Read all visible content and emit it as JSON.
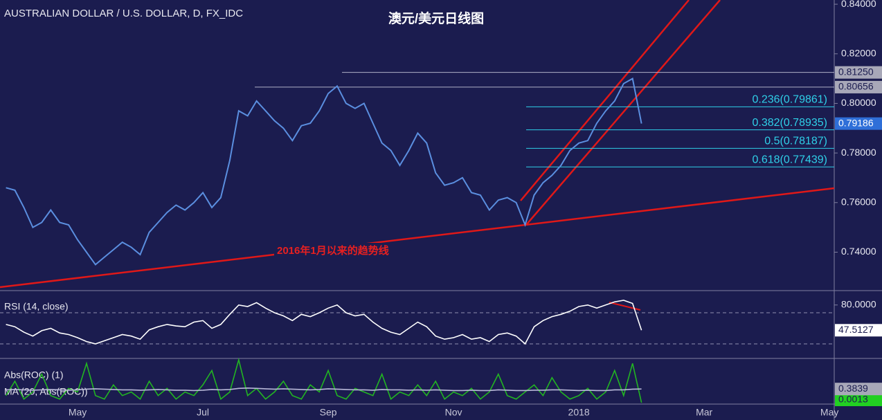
{
  "chart_data": [
    {
      "type": "line",
      "title": "AUSTRALIAN DOLLAR / U.S. DOLLAR, D, FX_IDC",
      "subtitle": "澳元/美元日线图",
      "annotation": "2016年1月以来的趋势线",
      "categories": [
        null,
        null,
        null,
        null,
        null,
        null,
        null,
        null,
        "May",
        null,
        null,
        null,
        null,
        null,
        null,
        null,
        null,
        null,
        null,
        null,
        null,
        null,
        "Jul",
        null,
        null,
        null,
        null,
        null,
        null,
        null,
        null,
        null,
        null,
        null,
        null,
        null,
        "Sep",
        null,
        null,
        null,
        null,
        null,
        null,
        null,
        null,
        null,
        null,
        null,
        null,
        null,
        "Nov",
        null,
        null,
        null,
        null,
        null,
        null,
        null,
        null,
        null,
        null,
        null,
        null,
        null,
        "2018",
        null,
        null,
        null,
        null,
        null,
        null,
        null,
        null,
        null,
        null,
        null,
        null,
        null,
        "Mar",
        null,
        null,
        null,
        null,
        null,
        null,
        null,
        null,
        null,
        null,
        null,
        null,
        null,
        "May"
      ],
      "series": [
        {
          "color": "#5b8fe0",
          "values": [
            0.766,
            0.765,
            0.758,
            0.75,
            0.752,
            0.757,
            0.752,
            0.751,
            0.745,
            0.74,
            0.735,
            0.738,
            0.741,
            0.744,
            0.742,
            0.739,
            0.748,
            0.752,
            0.756,
            0.759,
            0.757,
            0.76,
            0.764,
            0.758,
            0.762,
            0.777,
            0.797,
            0.795,
            0.801,
            0.797,
            0.793,
            0.79,
            0.785,
            0.791,
            0.792,
            0.797,
            0.804,
            0.807,
            0.8,
            0.798,
            0.8,
            0.792,
            0.784,
            0.781,
            0.775,
            0.781,
            0.788,
            0.784,
            0.772,
            0.767,
            0.768,
            0.77,
            0.764,
            0.763,
            0.757,
            0.761,
            0.762,
            0.76,
            0.751,
            0.763,
            0.768,
            0.771,
            0.775,
            0.781,
            0.784,
            0.785,
            0.792,
            0.797,
            0.801,
            0.808,
            0.81,
            0.79186,
            null,
            null,
            null,
            null,
            null,
            null,
            null,
            null,
            null,
            null,
            null,
            null,
            null,
            null,
            null,
            null,
            null,
            null,
            null,
            null,
            null
          ]
        }
      ],
      "ylim": [
        0.7245,
        0.8417
      ],
      "yticks": [
        {
          "value": 0.84,
          "label": "0.84000"
        },
        {
          "value": 0.82,
          "label": "0.82000"
        },
        {
          "value": 0.8,
          "label": "0.80000"
        },
        {
          "value": 0.78,
          "label": "0.78000"
        },
        {
          "value": 0.76,
          "label": "0.76000"
        },
        {
          "value": 0.74,
          "label": "0.74000"
        }
      ],
      "levels": [
        {
          "value": 0.8125,
          "label": "0.81250"
        },
        {
          "value": 0.80656,
          "label": "0.80656"
        }
      ],
      "fib_levels": [
        {
          "value": 0.79861,
          "label": "0.236(0.79861)"
        },
        {
          "value": 0.78935,
          "label": "0.382(0.78935)"
        },
        {
          "value": 0.78187,
          "label": "0.5(0.78187)"
        },
        {
          "value": 0.77439,
          "label": "0.618(0.77439)"
        }
      ]
    },
    {
      "type": "line",
      "series": [
        {
          "name": "RSI (14, close)",
          "color": "#ffffff",
          "values": [
            55,
            52,
            45,
            40,
            47,
            50,
            44,
            42,
            38,
            33,
            30,
            34,
            38,
            42,
            40,
            36,
            48,
            52,
            55,
            53,
            52,
            58,
            60,
            50,
            55,
            68,
            80,
            78,
            83,
            76,
            70,
            66,
            60,
            68,
            65,
            70,
            76,
            80,
            70,
            66,
            68,
            58,
            50,
            45,
            42,
            50,
            58,
            52,
            40,
            36,
            38,
            42,
            36,
            38,
            33,
            42,
            44,
            40,
            30,
            52,
            60,
            65,
            68,
            72,
            78,
            80,
            76,
            80,
            84,
            86,
            82,
            47.5127
          ]
        }
      ],
      "ylim": [
        11.3,
        96.7
      ],
      "yticks": [
        {
          "value": 80,
          "label": "80.0000"
        }
      ],
      "levels": [
        70,
        30
      ]
    },
    {
      "type": "line",
      "series": [
        {
          "name": "Abs(ROC) (1)",
          "color": "#22b522",
          "values": [
            0.2,
            0.6,
            0.1,
            0.3,
            0.8,
            0.2,
            0.1,
            0.4,
            0.3,
            1.1,
            0.2,
            0.1,
            0.5,
            0.2,
            0.3,
            0.1,
            0.6,
            0.2,
            0.4,
            0.1,
            0.3,
            0.2,
            0.5,
            0.9,
            0.1,
            0.3,
            1.2,
            0.2,
            0.4,
            0.1,
            0.3,
            0.6,
            0.2,
            0.1,
            0.5,
            0.3,
            0.9,
            0.2,
            0.1,
            0.4,
            0.3,
            0.2,
            0.8,
            0.1,
            0.3,
            0.2,
            0.5,
            0.2,
            0.6,
            0.1,
            0.3,
            0.2,
            0.4,
            0.1,
            0.3,
            0.8,
            0.2,
            0.1,
            0.3,
            0.5,
            0.2,
            0.7,
            0.3,
            0.1,
            0.2,
            0.4,
            0.1,
            0.3,
            0.9,
            0.2,
            1.1,
            0.0013
          ]
        },
        {
          "name": "MA (20, Abs(ROC))",
          "color": "#b8b8d8",
          "values": [
            0.36,
            0.37,
            0.36,
            0.35,
            0.36,
            0.37,
            0.36,
            0.35,
            0.36,
            0.38,
            0.39,
            0.38,
            0.37,
            0.36,
            0.36,
            0.35,
            0.36,
            0.37,
            0.36,
            0.35,
            0.35,
            0.34,
            0.35,
            0.37,
            0.36,
            0.37,
            0.4,
            0.41,
            0.4,
            0.39,
            0.38,
            0.39,
            0.38,
            0.37,
            0.36,
            0.37,
            0.39,
            0.38,
            0.37,
            0.36,
            0.36,
            0.35,
            0.37,
            0.36,
            0.36,
            0.35,
            0.36,
            0.35,
            0.36,
            0.35,
            0.34,
            0.34,
            0.35,
            0.34,
            0.34,
            0.36,
            0.35,
            0.34,
            0.34,
            0.35,
            0.35,
            0.36,
            0.36,
            0.35,
            0.34,
            0.35,
            0.34,
            0.34,
            0.36,
            0.36,
            0.38,
            0.3839
          ]
        }
      ],
      "ylim": [
        0,
        1.2
      ]
    }
  ]
}
